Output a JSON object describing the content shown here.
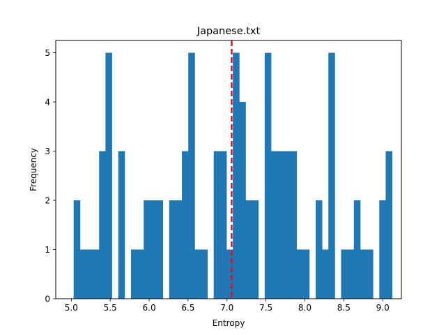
{
  "chart_data": {
    "type": "bar",
    "title": "Japanese.txt",
    "xlabel": "Entropy",
    "ylabel": "Frequency",
    "xlim": [
      4.8,
      9.24
    ],
    "ylim": [
      0,
      5.25
    ],
    "grid": false,
    "xticks": [
      5.0,
      5.5,
      6.0,
      6.5,
      7.0,
      7.5,
      8.0,
      8.5,
      9.0
    ],
    "xtick_labels": [
      "5.0",
      "5.5",
      "6.0",
      "6.5",
      "7.0",
      "7.5",
      "8.0",
      "8.5",
      "9.0"
    ],
    "yticks": [
      0,
      1,
      2,
      3,
      4,
      5
    ],
    "ytick_labels": [
      "0",
      "1",
      "2",
      "3",
      "4",
      "5"
    ],
    "bin_start": 5.03,
    "bin_width": 0.0818,
    "bin_counts": [
      2,
      1,
      1,
      1,
      3,
      5,
      0,
      3,
      0,
      1,
      1,
      2,
      2,
      2,
      0,
      2,
      2,
      3,
      5,
      1,
      1,
      0,
      3,
      3,
      1,
      5,
      4,
      2,
      2,
      0,
      5,
      3,
      3,
      3,
      3,
      1,
      1,
      0,
      2,
      1,
      5,
      0,
      1,
      1,
      2,
      1,
      1,
      0,
      2,
      3
    ],
    "bar_color": "#1f77b4",
    "vline": {
      "x": 7.06,
      "color": "#e3101b",
      "style": "dashed"
    }
  }
}
